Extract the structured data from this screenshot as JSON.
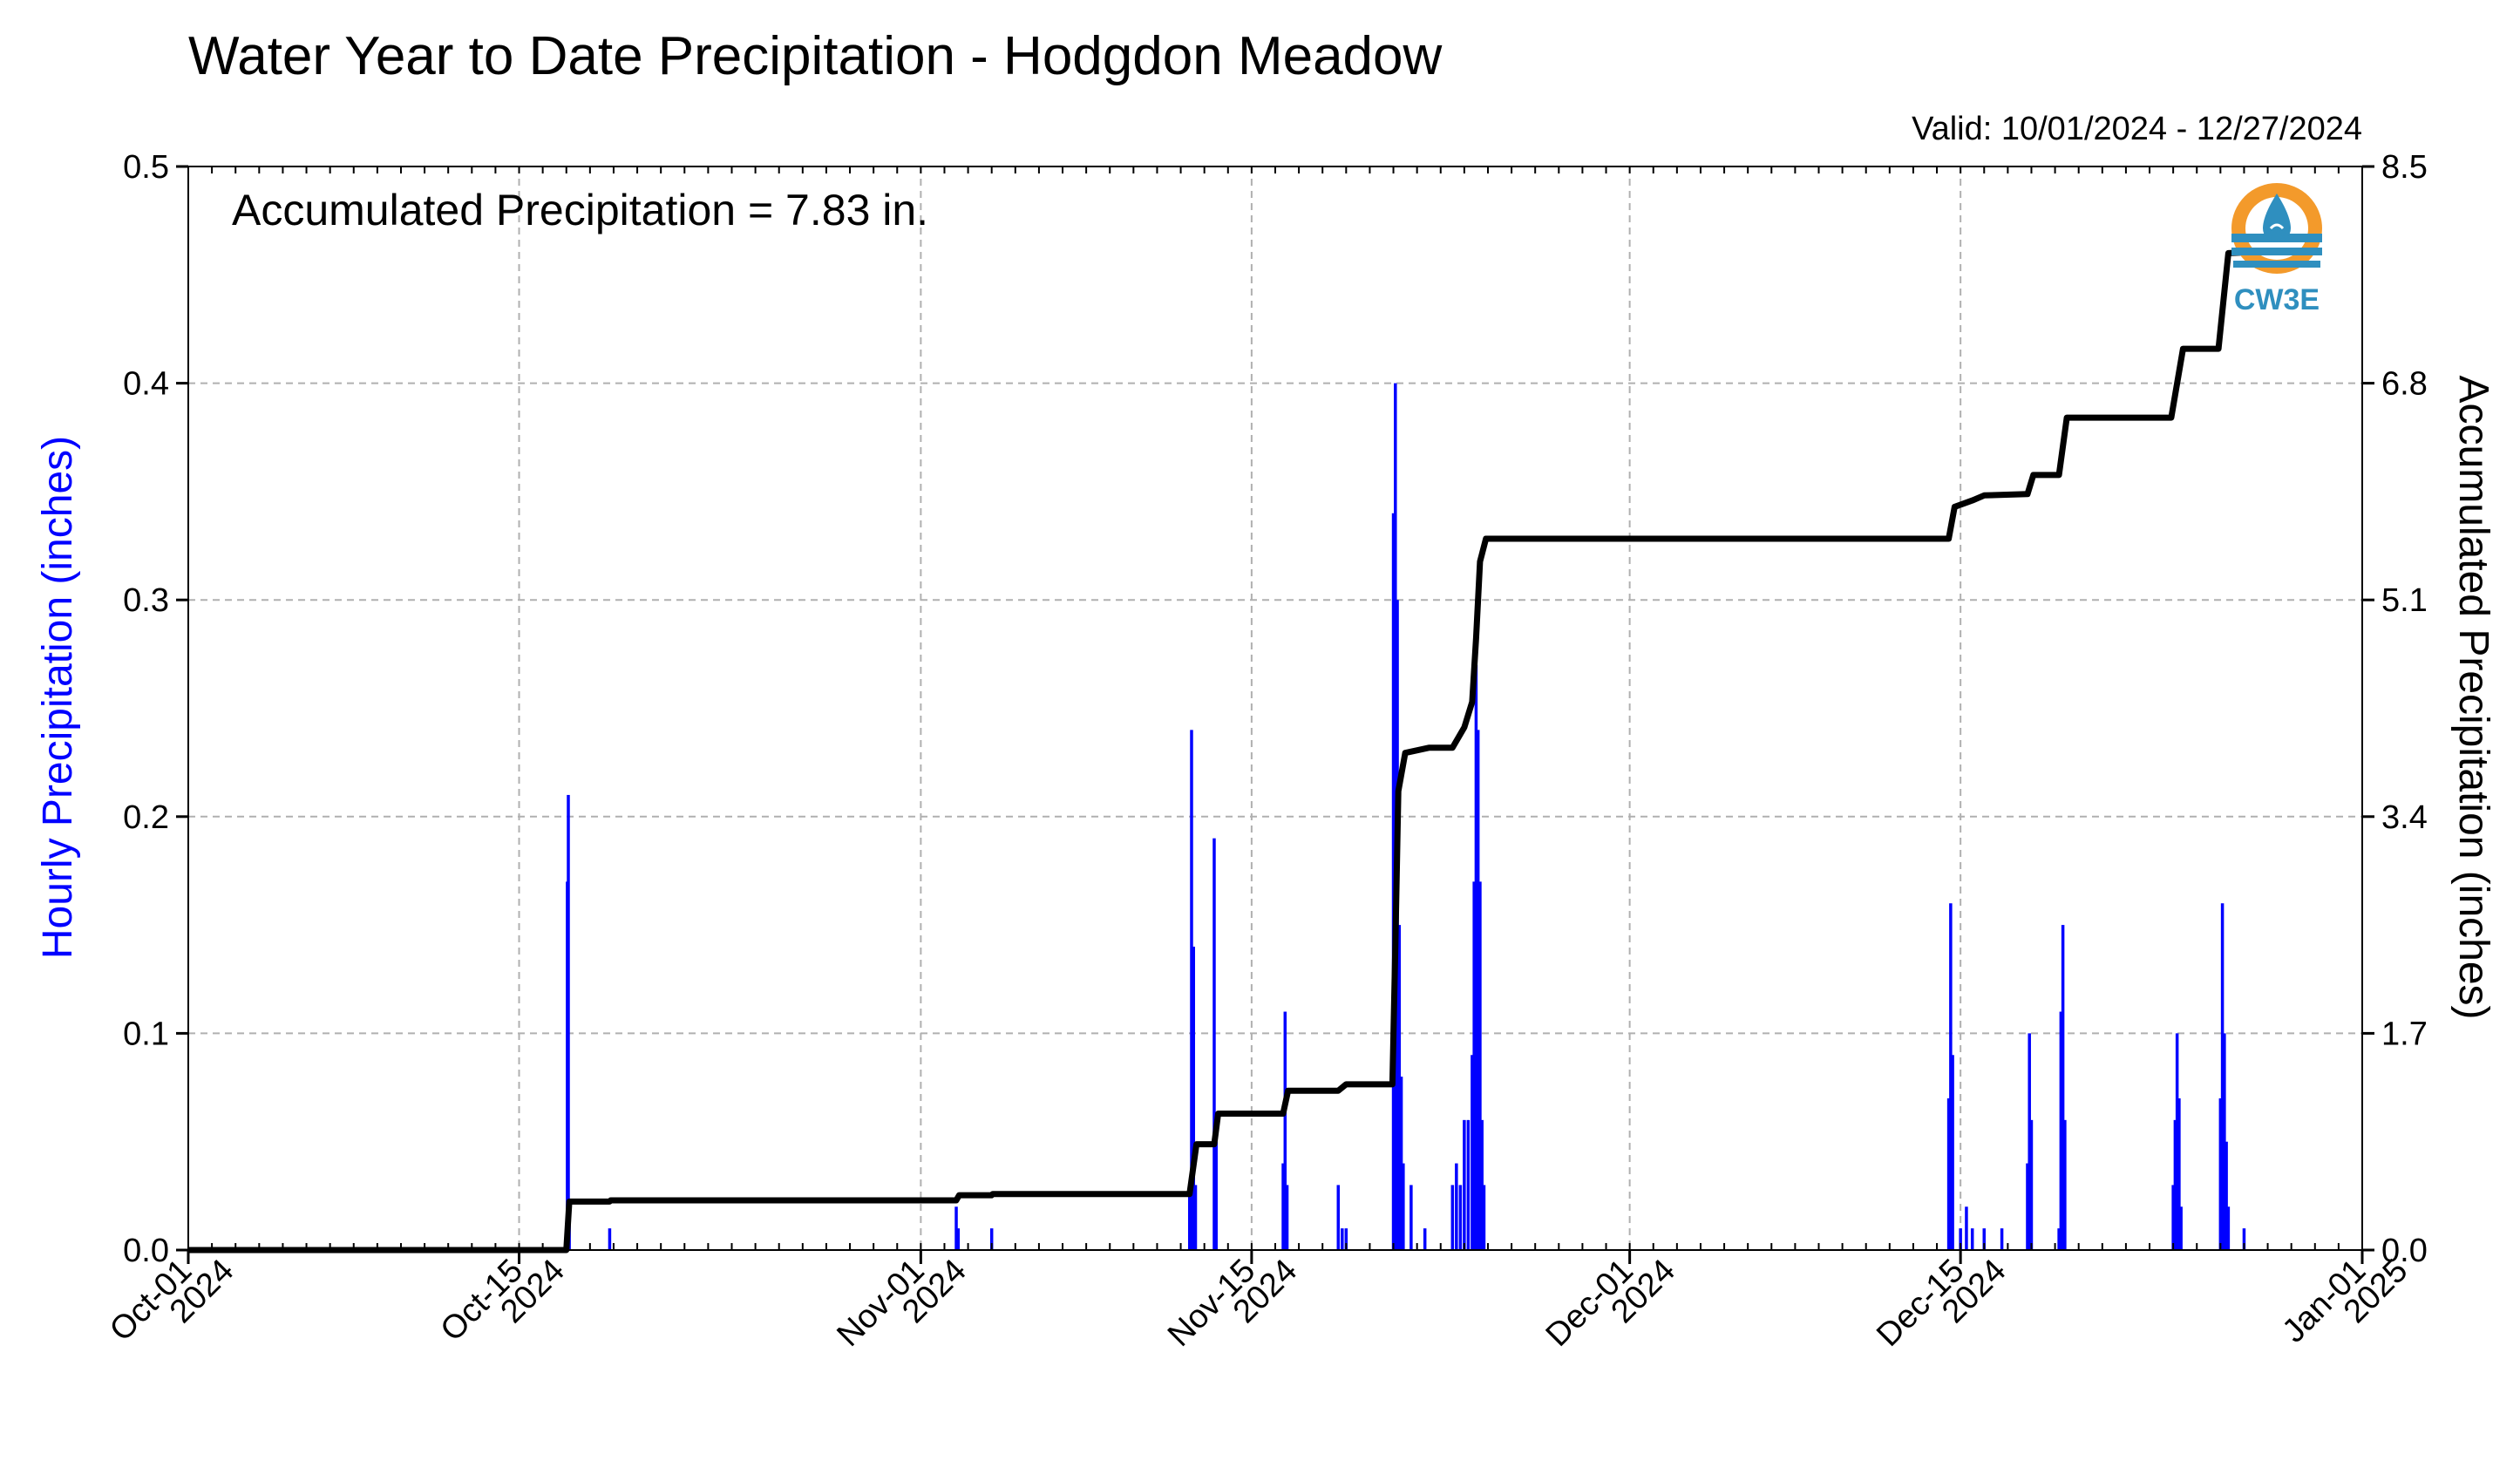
{
  "chart_data": {
    "type": "bar+line",
    "title": "Water Year to Date Precipitation - Hodgdon Meadow",
    "valid_text": "Valid: 10/01/2024 - 12/27/2024",
    "annotation": "Accumulated Precipitation = 7.83 in.",
    "ylabel_left": "Hourly Precipitation (inches)",
    "ylabel_right": "Accumulated Precipitation (inches)",
    "xlim": [
      "2024-10-01",
      "2025-01-01"
    ],
    "ylim_left": [
      0,
      0.5
    ],
    "ylim_right": [
      0,
      8.5
    ],
    "grid": true,
    "x_ticks": [
      {
        "date": "2024-10-01",
        "l1": "Oct-01",
        "l2": "2024"
      },
      {
        "date": "2024-10-15",
        "l1": "Oct-15",
        "l2": "2024"
      },
      {
        "date": "2024-11-01",
        "l1": "Nov-01",
        "l2": "2024"
      },
      {
        "date": "2024-11-15",
        "l1": "Nov-15",
        "l2": "2024"
      },
      {
        "date": "2024-12-01",
        "l1": "Dec-01",
        "l2": "2024"
      },
      {
        "date": "2024-12-15",
        "l1": "Dec-15",
        "l2": "2024"
      },
      {
        "date": "2025-01-01",
        "l1": "Jan-01",
        "l2": "2025"
      }
    ],
    "y_ticks_left": [
      "0.0",
      "0.1",
      "0.2",
      "0.3",
      "0.4",
      "0.5"
    ],
    "y_ticks_right": [
      "0.0",
      "1.7",
      "3.4",
      "5.1",
      "6.8",
      "8.5"
    ],
    "hourly_series": {
      "name": "Hourly Precipitation",
      "color": "#0000ff",
      "points": [
        [
          "2024-10-17T01:00",
          0.17
        ],
        [
          "2024-10-17T02:00",
          0.21
        ],
        [
          "2024-10-17T03:00",
          0.02
        ],
        [
          "2024-10-18T20:00",
          0.01
        ],
        [
          "2024-11-02T12:00",
          0.02
        ],
        [
          "2024-11-02T14:00",
          0.01
        ],
        [
          "2024-11-04T00:00",
          0.01
        ],
        [
          "2024-11-12T09:00",
          0.03
        ],
        [
          "2024-11-12T11:00",
          0.24
        ],
        [
          "2024-11-12T13:00",
          0.14
        ],
        [
          "2024-11-12T15:00",
          0.03
        ],
        [
          "2024-11-13T10:00",
          0.19
        ],
        [
          "2024-11-13T12:00",
          0.05
        ],
        [
          "2024-11-16T08:00",
          0.04
        ],
        [
          "2024-11-16T10:00",
          0.11
        ],
        [
          "2024-11-16T12:00",
          0.03
        ],
        [
          "2024-11-18T16:00",
          0.03
        ],
        [
          "2024-11-18T20:00",
          0.01
        ],
        [
          "2024-11-19T00:00",
          0.01
        ],
        [
          "2024-11-21T00:00",
          0.34
        ],
        [
          "2024-11-21T02:00",
          0.4
        ],
        [
          "2024-11-21T04:00",
          0.3
        ],
        [
          "2024-11-21T06:00",
          0.15
        ],
        [
          "2024-11-21T08:00",
          0.08
        ],
        [
          "2024-11-21T10:00",
          0.04
        ],
        [
          "2024-11-21T18:00",
          0.03
        ],
        [
          "2024-11-22T08:00",
          0.01
        ],
        [
          "2024-11-23T12:00",
          0.03
        ],
        [
          "2024-11-23T16:00",
          0.04
        ],
        [
          "2024-11-23T20:00",
          0.03
        ],
        [
          "2024-11-24T00:00",
          0.06
        ],
        [
          "2024-11-24T04:00",
          0.06
        ],
        [
          "2024-11-24T08:00",
          0.09
        ],
        [
          "2024-11-24T10:00",
          0.17
        ],
        [
          "2024-11-24T12:00",
          0.27
        ],
        [
          "2024-11-24T14:00",
          0.24
        ],
        [
          "2024-11-24T16:00",
          0.17
        ],
        [
          "2024-11-24T18:00",
          0.06
        ],
        [
          "2024-11-24T20:00",
          0.03
        ],
        [
          "2024-12-14T12:00",
          0.07
        ],
        [
          "2024-12-14T14:00",
          0.16
        ],
        [
          "2024-12-14T16:00",
          0.09
        ],
        [
          "2024-12-15T00:00",
          0.01
        ],
        [
          "2024-12-15T06:00",
          0.02
        ],
        [
          "2024-12-15T12:00",
          0.01
        ],
        [
          "2024-12-16T00:00",
          0.01
        ],
        [
          "2024-12-16T18:00",
          0.01
        ],
        [
          "2024-12-17T20:00",
          0.04
        ],
        [
          "2024-12-17T22:00",
          0.1
        ],
        [
          "2024-12-18T00:00",
          0.06
        ],
        [
          "2024-12-19T04:00",
          0.01
        ],
        [
          "2024-12-19T06:00",
          0.11
        ],
        [
          "2024-12-19T08:00",
          0.15
        ],
        [
          "2024-12-19T10:00",
          0.06
        ],
        [
          "2024-12-24T00:00",
          0.03
        ],
        [
          "2024-12-24T02:00",
          0.06
        ],
        [
          "2024-12-24T04:00",
          0.1
        ],
        [
          "2024-12-24T06:00",
          0.07
        ],
        [
          "2024-12-24T08:00",
          0.02
        ],
        [
          "2024-12-26T00:00",
          0.07
        ],
        [
          "2024-12-26T02:00",
          0.16
        ],
        [
          "2024-12-26T04:00",
          0.1
        ],
        [
          "2024-12-26T06:00",
          0.05
        ],
        [
          "2024-12-26T08:00",
          0.02
        ],
        [
          "2024-12-27T00:00",
          0.01
        ]
      ]
    },
    "accumulated_series": {
      "name": "Accumulated Precipitation",
      "color": "#000000",
      "points": [
        [
          "2024-10-01T00:00",
          0.0
        ],
        [
          "2024-10-17T00:00",
          0.0
        ],
        [
          "2024-10-17T03:00",
          0.38
        ],
        [
          "2024-10-18T20:00",
          0.38
        ],
        [
          "2024-10-18T21:00",
          0.39
        ],
        [
          "2024-11-02T12:00",
          0.39
        ],
        [
          "2024-11-02T15:00",
          0.43
        ],
        [
          "2024-11-04T00:00",
          0.43
        ],
        [
          "2024-11-04T01:00",
          0.44
        ],
        [
          "2024-11-12T09:00",
          0.44
        ],
        [
          "2024-11-12T16:00",
          0.83
        ],
        [
          "2024-11-13T10:00",
          0.83
        ],
        [
          "2024-11-13T14:00",
          1.07
        ],
        [
          "2024-11-16T08:00",
          1.07
        ],
        [
          "2024-11-16T13:00",
          1.25
        ],
        [
          "2024-11-18T16:00",
          1.25
        ],
        [
          "2024-11-19T00:00",
          1.3
        ],
        [
          "2024-11-20T23:00",
          1.3
        ],
        [
          "2024-11-21T02:00",
          2.4
        ],
        [
          "2024-11-21T05:00",
          3.6
        ],
        [
          "2024-11-21T12:00",
          3.9
        ],
        [
          "2024-11-22T12:00",
          3.94
        ],
        [
          "2024-11-23T12:00",
          3.94
        ],
        [
          "2024-11-24T00:00",
          4.1
        ],
        [
          "2024-11-24T08:00",
          4.3
        ],
        [
          "2024-11-24T12:00",
          4.8
        ],
        [
          "2024-11-24T16:00",
          5.4
        ],
        [
          "2024-11-24T22:00",
          5.58
        ],
        [
          "2024-12-14T12:00",
          5.58
        ],
        [
          "2024-12-14T18:00",
          5.83
        ],
        [
          "2024-12-15T12:00",
          5.88
        ],
        [
          "2024-12-16T00:00",
          5.92
        ],
        [
          "2024-12-17T20:00",
          5.93
        ],
        [
          "2024-12-18T02:00",
          6.08
        ],
        [
          "2024-12-19T04:00",
          6.08
        ],
        [
          "2024-12-19T12:00",
          6.53
        ],
        [
          "2024-12-23T22:00",
          6.53
        ],
        [
          "2024-12-24T10:00",
          7.07
        ],
        [
          "2024-12-25T22:00",
          7.07
        ],
        [
          "2024-12-26T08:00",
          7.82
        ],
        [
          "2024-12-27T12:00",
          7.83
        ]
      ]
    }
  },
  "logo": {
    "text": "CW3E",
    "outer_color": "#f39a2b",
    "wave_color": "#2f8fbf",
    "drop_color": "#2f8fbf",
    "icon": "water-drop-logo-icon"
  }
}
